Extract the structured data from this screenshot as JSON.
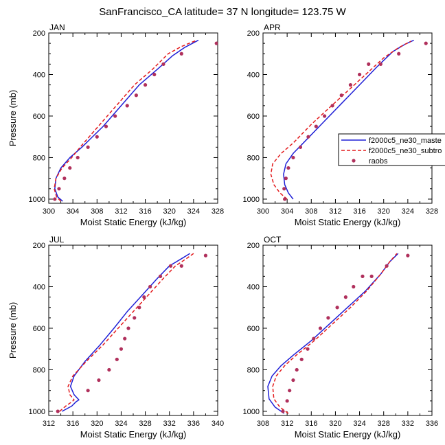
{
  "figure": {
    "title": "SanFrancisco_CA  latitude= 37 N longitude= 123.75 W"
  },
  "colors": {
    "master": "#1f1fd6",
    "subtrop": "#e31a1c",
    "raobs": "#b0305c",
    "axis": "#000000"
  },
  "legend": {
    "entries": [
      {
        "name": "f2000c5_ne30_maste",
        "style": "solid",
        "color_key": "master"
      },
      {
        "name": "f2000c5_ne30_subtro",
        "style": "dashed",
        "color_key": "subtrop"
      },
      {
        "name": "raobs",
        "style": "marker",
        "color_key": "raobs"
      }
    ]
  },
  "chart_data": [
    {
      "type": "line",
      "panel": "JAN",
      "title": "JAN",
      "xlabel": "Moist Static Energy (kJ/kg)",
      "ylabel": "Pressure (mb)",
      "xlim": [
        300,
        328
      ],
      "ylim": [
        200,
        1020
      ],
      "y_inverted": true,
      "x_ticks": [
        300,
        304,
        308,
        312,
        316,
        320,
        324,
        328
      ],
      "y_ticks": [
        200,
        400,
        600,
        800,
        1000
      ],
      "series": [
        {
          "name": "f2000c5_ne30_maste",
          "style": "solid",
          "color_key": "master",
          "x": [
            302.3,
            301.5,
            301.0,
            301.2,
            302.0,
            303.5,
            305.5,
            309.0,
            312.0,
            315.0,
            318.0,
            320.5,
            322.5,
            324.8
          ],
          "y": [
            1010,
            990,
            950,
            900,
            850,
            800,
            750,
            650,
            550,
            450,
            375,
            310,
            270,
            235
          ]
        },
        {
          "name": "f2000c5_ne30_subtro",
          "style": "dashed",
          "color_key": "subtrop",
          "x": [
            302.0,
            301.3,
            300.9,
            301.2,
            302.2,
            303.8,
            305.2,
            308.2,
            311.2,
            314.2,
            317.2,
            319.8,
            322.0,
            324.5
          ],
          "y": [
            1010,
            990,
            950,
            900,
            850,
            800,
            750,
            650,
            550,
            450,
            375,
            300,
            265,
            235
          ]
        },
        {
          "name": "raobs",
          "style": "marker",
          "color_key": "raobs",
          "x": [
            301.0,
            301.7,
            302.6,
            303.5,
            304.8,
            306.5,
            308.0,
            309.5,
            311.0,
            313.0,
            314.5,
            316.0,
            317.5,
            319.0,
            322.0,
            327.8
          ],
          "y": [
            1000,
            950,
            900,
            850,
            800,
            750,
            700,
            650,
            600,
            550,
            500,
            450,
            400,
            350,
            300,
            250
          ]
        }
      ]
    },
    {
      "type": "line",
      "panel": "APR",
      "title": "APR",
      "xlabel": "Moist Static Energy (kJ/kg)",
      "ylabel": "",
      "xlim": [
        300,
        328
      ],
      "ylim": [
        200,
        1020
      ],
      "y_inverted": true,
      "x_ticks": [
        300,
        304,
        308,
        312,
        316,
        320,
        324,
        328
      ],
      "y_ticks": [
        200,
        400,
        600,
        800,
        1000
      ],
      "series": [
        {
          "name": "f2000c5_ne30_maste",
          "style": "solid",
          "color_key": "master",
          "x": [
            305.0,
            304.2,
            303.6,
            303.4,
            303.8,
            305.0,
            307.0,
            310.0,
            313.0,
            316.0,
            319.0,
            321.5,
            323.5,
            325.0
          ],
          "y": [
            1000,
            970,
            930,
            880,
            830,
            780,
            720,
            630,
            540,
            450,
            360,
            290,
            255,
            235
          ]
        },
        {
          "name": "f2000c5_ne30_subtro",
          "style": "dashed",
          "color_key": "subtrop",
          "x": [
            304.0,
            302.8,
            301.8,
            301.3,
            301.6,
            303.0,
            305.0,
            308.0,
            311.0,
            314.0,
            317.0,
            320.0,
            322.5,
            324.5
          ],
          "y": [
            1000,
            970,
            930,
            880,
            830,
            780,
            730,
            640,
            560,
            480,
            400,
            320,
            270,
            240
          ]
        },
        {
          "name": "raobs",
          "style": "marker",
          "color_key": "raobs",
          "x": [
            303.6,
            303.5,
            303.8,
            304.2,
            305.0,
            306.2,
            307.5,
            308.8,
            310.2,
            311.5,
            313.0,
            314.5,
            316.0,
            317.5,
            319.5,
            322.5,
            327.0
          ],
          "y": [
            1000,
            950,
            900,
            850,
            800,
            750,
            700,
            650,
            600,
            550,
            500,
            450,
            400,
            350,
            350,
            300,
            250
          ]
        }
      ]
    },
    {
      "type": "line",
      "panel": "JUL",
      "title": "JUL",
      "xlabel": "Moist Static Energy (kJ/kg)",
      "ylabel": "Pressure (mb)",
      "xlim": [
        312,
        340
      ],
      "ylim": [
        200,
        1020
      ],
      "y_inverted": true,
      "x_ticks": [
        312,
        316,
        320,
        324,
        328,
        332,
        336,
        340
      ],
      "y_ticks": [
        200,
        400,
        600,
        800,
        1000
      ],
      "series": [
        {
          "name": "f2000c5_ne30_maste",
          "style": "solid",
          "color_key": "master",
          "x": [
            314.2,
            315.8,
            316.5,
            317.0,
            316.2,
            315.6,
            316.2,
            318.0,
            320.5,
            322.8,
            325.0,
            327.5,
            330.0,
            332.0,
            334.0,
            335.4
          ],
          "y": [
            1000,
            975,
            955,
            945,
            920,
            880,
            830,
            760,
            680,
            600,
            520,
            440,
            360,
            300,
            265,
            240
          ]
        },
        {
          "name": "f2000c5_ne30_subtro",
          "style": "dashed",
          "color_key": "subtrop",
          "x": [
            313.8,
            314.8,
            315.8,
            316.2,
            315.5,
            315.2,
            316.0,
            318.2,
            321.0,
            323.5,
            326.0,
            328.5,
            331.0,
            333.0,
            334.8,
            336.0
          ],
          "y": [
            1000,
            975,
            955,
            945,
            920,
            880,
            830,
            760,
            680,
            600,
            520,
            440,
            360,
            300,
            265,
            240
          ]
        },
        {
          "name": "raobs",
          "style": "marker",
          "color_key": "raobs",
          "x": [
            313.5,
            318.5,
            320.3,
            322.0,
            323.3,
            324.0,
            324.6,
            325.2,
            326.2,
            327.0,
            327.8,
            328.8,
            330.5,
            332.2,
            334.0,
            338.0
          ],
          "y": [
            1000,
            900,
            850,
            800,
            750,
            700,
            650,
            600,
            550,
            500,
            450,
            400,
            350,
            300,
            300,
            250
          ]
        }
      ]
    },
    {
      "type": "line",
      "panel": "OCT",
      "title": "OCT",
      "xlabel": "Moist Static Energy (kJ/kg)",
      "ylabel": "",
      "xlim": [
        308,
        336
      ],
      "ylim": [
        200,
        1020
      ],
      "y_inverted": true,
      "x_ticks": [
        308,
        312,
        316,
        320,
        324,
        328,
        332,
        336
      ],
      "y_ticks": [
        200,
        400,
        600,
        800,
        1000
      ],
      "series": [
        {
          "name": "f2000c5_ne30_maste",
          "style": "solid",
          "color_key": "master",
          "x": [
            311.5,
            310.0,
            309.0,
            308.8,
            309.5,
            311.0,
            313.0,
            316.0,
            319.0,
            322.0,
            325.0,
            327.5,
            329.0,
            330.4
          ],
          "y": [
            1010,
            980,
            940,
            880,
            830,
            780,
            730,
            660,
            580,
            500,
            420,
            340,
            280,
            240
          ]
        },
        {
          "name": "f2000c5_ne30_subtro",
          "style": "dashed",
          "color_key": "subtrop",
          "x": [
            312.2,
            310.8,
            309.8,
            309.6,
            310.2,
            311.6,
            313.5,
            316.5,
            319.5,
            322.5,
            325.2,
            327.5,
            329.0,
            330.2
          ],
          "y": [
            1010,
            980,
            940,
            880,
            830,
            780,
            730,
            660,
            580,
            500,
            420,
            340,
            280,
            240
          ]
        },
        {
          "name": "raobs",
          "style": "marker",
          "color_key": "raobs",
          "x": [
            311.3,
            312.0,
            312.4,
            313.0,
            313.6,
            314.4,
            315.4,
            316.4,
            317.5,
            318.8,
            320.3,
            321.7,
            323.0,
            324.5,
            326.0,
            328.5,
            332.0
          ],
          "y": [
            1000,
            950,
            900,
            850,
            800,
            750,
            700,
            650,
            600,
            550,
            500,
            450,
            400,
            350,
            350,
            300,
            250
          ]
        }
      ]
    }
  ]
}
